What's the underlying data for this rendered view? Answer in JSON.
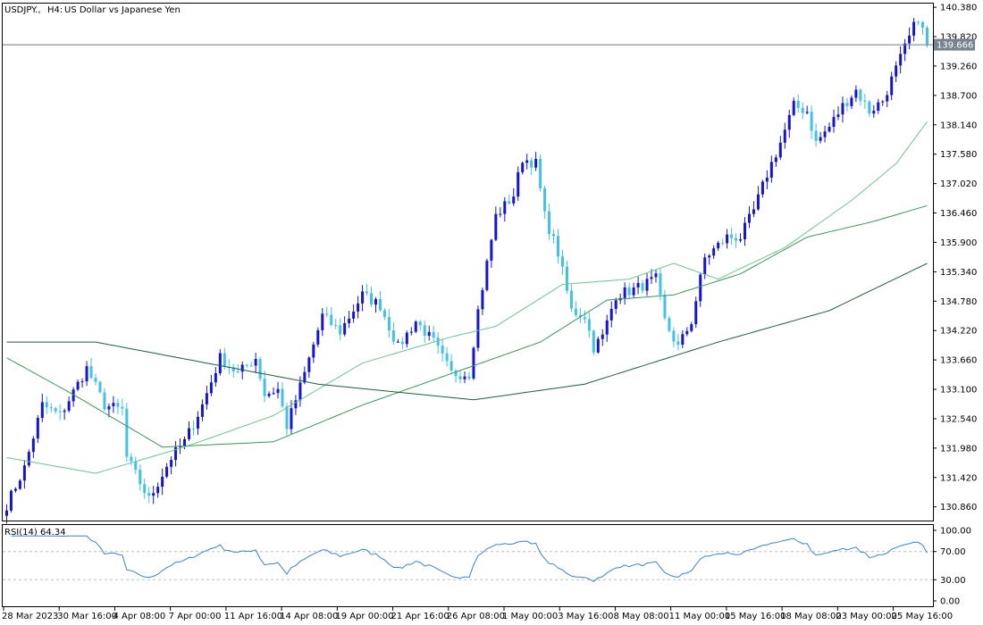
{
  "header": {
    "symbol": "USDJPY.,",
    "timeframe": "H4:",
    "description": "US Dollar vs Japanese Yen"
  },
  "price_axis": {
    "ticks": [
      "140.380",
      "139.820",
      "139.260",
      "138.700",
      "138.140",
      "137.580",
      "137.020",
      "136.460",
      "135.900",
      "135.340",
      "134.780",
      "134.220",
      "133.660",
      "133.100",
      "132.540",
      "131.980",
      "131.420",
      "130.860"
    ],
    "current_price_label": "139.666"
  },
  "rsi_panel": {
    "label": "RSI(14) 64.34",
    "ticks": [
      "100.00",
      "70.00",
      "30.00",
      "0.00"
    ]
  },
  "time_axis": {
    "labels": [
      "28 Mar 2023",
      "30 Mar 16:00",
      "4 Apr 08:00",
      "7 Apr 00:00",
      "11 Apr 16:00",
      "14 Apr 08:00",
      "19 Apr 00:00",
      "21 Apr 16:00",
      "26 Apr 08:00",
      "1 May 00:00",
      "3 May 16:00",
      "8 May 08:00",
      "11 May 00:00",
      "15 May 16:00",
      "18 May 08:00",
      "23 May 00:00",
      "25 May 16:00"
    ]
  },
  "colors": {
    "bull": "#1414d2",
    "bear": "#41c0e8",
    "ma_fast": "#6cc58c",
    "ma_mid": "#3e9558",
    "ma_slow": "#1f5e3c",
    "rsi": "#3a83d0",
    "grid": "#bdbdbd",
    "axis_text": "#000000",
    "current_line": "#6e7b8a",
    "current_label_bg": "#76838f"
  },
  "chart_data": {
    "type": "candlestick",
    "timeframe": "H4",
    "y_range": [
      130.6,
      140.45
    ],
    "rsi_range": [
      0,
      100
    ],
    "rsi_levels": [
      70,
      30
    ],
    "current_price": 139.666,
    "close_anchors": [
      [
        0,
        130.9
      ],
      [
        4,
        131.6
      ],
      [
        8,
        132.8
      ],
      [
        12,
        132.6
      ],
      [
        16,
        133.2
      ],
      [
        18,
        133.5
      ],
      [
        22,
        132.8
      ],
      [
        26,
        132.7
      ],
      [
        27,
        131.8
      ],
      [
        32,
        131.0
      ],
      [
        37,
        131.8
      ],
      [
        40,
        132.1
      ],
      [
        44,
        132.8
      ],
      [
        48,
        133.7
      ],
      [
        52,
        133.4
      ],
      [
        56,
        133.7
      ],
      [
        58,
        133.0
      ],
      [
        61,
        133.1
      ],
      [
        63,
        132.4
      ],
      [
        67,
        133.4
      ],
      [
        71,
        134.5
      ],
      [
        75,
        134.2
      ],
      [
        80,
        134.9
      ],
      [
        84,
        134.7
      ],
      [
        88,
        133.9
      ],
      [
        92,
        134.4
      ],
      [
        96,
        134.0
      ],
      [
        100,
        133.4
      ],
      [
        104,
        133.4
      ],
      [
        106,
        134.6
      ],
      [
        110,
        136.4
      ],
      [
        114,
        136.8
      ],
      [
        116,
        137.5
      ],
      [
        119,
        137.4
      ],
      [
        121,
        136.4
      ],
      [
        124,
        135.7
      ],
      [
        127,
        134.6
      ],
      [
        130,
        134.5
      ],
      [
        132,
        133.9
      ],
      [
        134,
        134.1
      ],
      [
        137,
        134.9
      ],
      [
        141,
        135.0
      ],
      [
        146,
        135.2
      ],
      [
        148,
        134.4
      ],
      [
        151,
        133.9
      ],
      [
        154,
        134.4
      ],
      [
        157,
        135.6
      ],
      [
        162,
        136.0
      ],
      [
        165,
        136.0
      ],
      [
        168,
        136.5
      ],
      [
        171,
        137.2
      ],
      [
        174,
        137.8
      ],
      [
        177,
        138.5
      ],
      [
        180,
        138.4
      ],
      [
        182,
        137.8
      ],
      [
        185,
        138.1
      ],
      [
        188,
        138.5
      ],
      [
        191,
        138.8
      ],
      [
        194,
        138.4
      ],
      [
        197,
        138.6
      ],
      [
        200,
        139.2
      ],
      [
        203,
        139.8
      ],
      [
        205,
        140.2
      ],
      [
        207,
        139.67
      ]
    ],
    "ma_fast_points": [
      [
        0,
        131.8
      ],
      [
        20,
        131.5
      ],
      [
        40,
        132.0
      ],
      [
        60,
        132.6
      ],
      [
        80,
        133.6
      ],
      [
        100,
        134.1
      ],
      [
        110,
        134.3
      ],
      [
        125,
        135.1
      ],
      [
        140,
        135.2
      ],
      [
        150,
        135.5
      ],
      [
        160,
        135.2
      ],
      [
        175,
        135.8
      ],
      [
        190,
        136.7
      ],
      [
        200,
        137.4
      ],
      [
        207,
        138.2
      ]
    ],
    "ma_mid_points": [
      [
        0,
        133.7
      ],
      [
        15,
        133.0
      ],
      [
        35,
        132.0
      ],
      [
        60,
        132.1
      ],
      [
        80,
        132.8
      ],
      [
        100,
        133.4
      ],
      [
        120,
        134.0
      ],
      [
        135,
        134.8
      ],
      [
        150,
        134.9
      ],
      [
        165,
        135.3
      ],
      [
        180,
        136.0
      ],
      [
        195,
        136.3
      ],
      [
        207,
        136.6
      ]
    ],
    "ma_slow_points": [
      [
        0,
        134.0
      ],
      [
        20,
        134.0
      ],
      [
        45,
        133.6
      ],
      [
        70,
        133.2
      ],
      [
        105,
        132.9
      ],
      [
        130,
        133.2
      ],
      [
        160,
        134.0
      ],
      [
        185,
        134.6
      ],
      [
        207,
        135.5
      ]
    ]
  }
}
